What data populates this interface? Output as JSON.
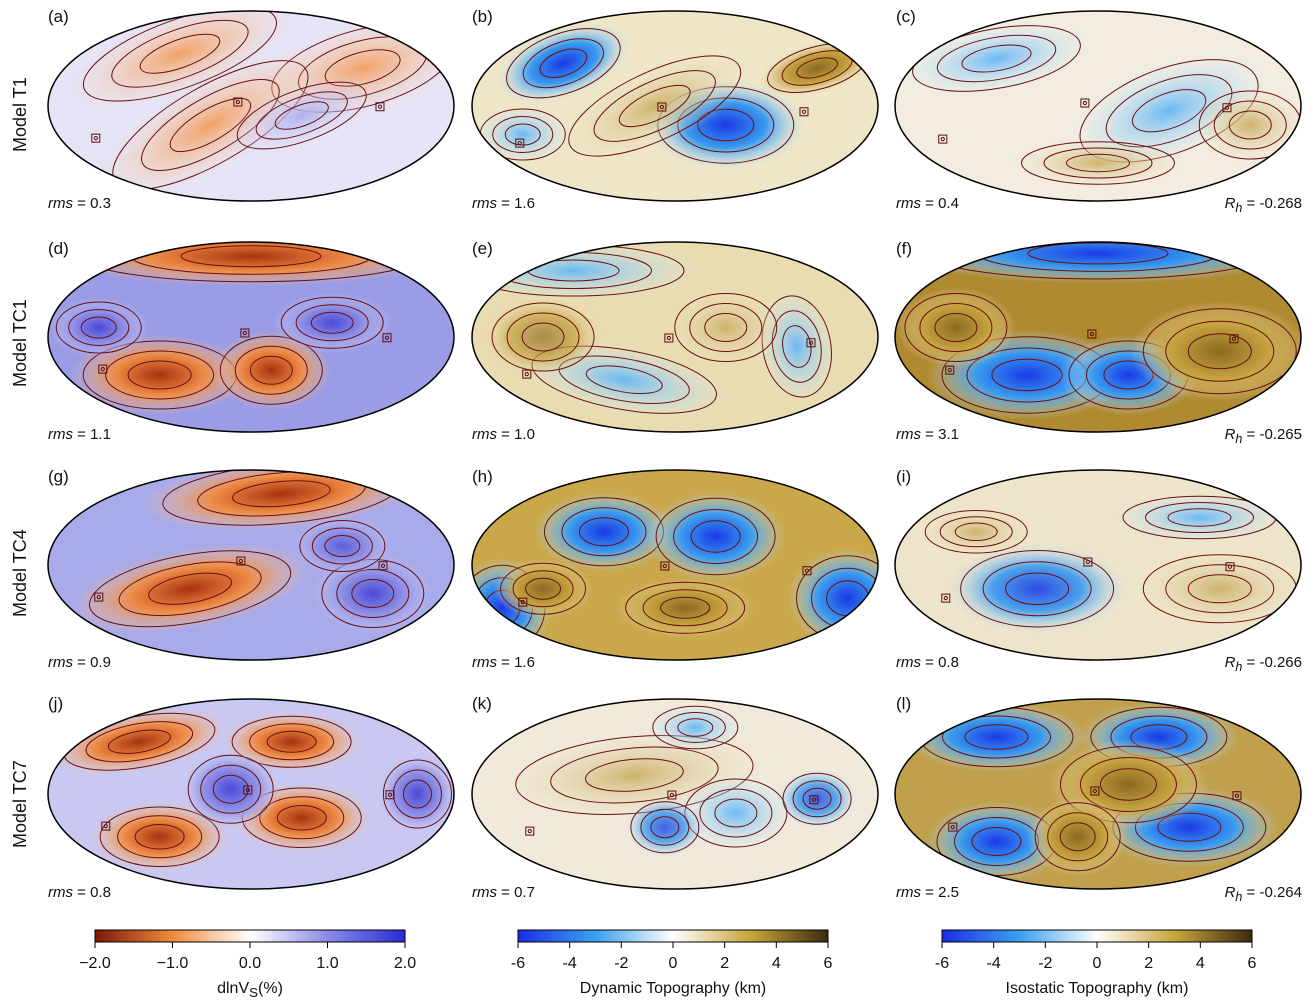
{
  "rows": [
    {
      "label": "Model T1",
      "panels": [
        {
          "id": "(a)",
          "rms_label": "rms",
          "rms_value": " = 0.3"
        },
        {
          "id": "(b)",
          "rms_label": "rms",
          "rms_value": " = 1.6"
        },
        {
          "id": "(c)",
          "rms_label": "rms",
          "rms_value": " = 0.4",
          "rh_label": "R",
          "rh_sub": "h",
          "rh_value": " = -0.268"
        }
      ]
    },
    {
      "label": "Model TC1",
      "panels": [
        {
          "id": "(d)",
          "rms_label": "rms",
          "rms_value": " = 1.1"
        },
        {
          "id": "(e)",
          "rms_label": "rms",
          "rms_value": " = 1.0"
        },
        {
          "id": "(f)",
          "rms_label": "rms",
          "rms_value": " = 3.1",
          "rh_label": "R",
          "rh_sub": "h",
          "rh_value": " = -0.265"
        }
      ]
    },
    {
      "label": "Model TC4",
      "panels": [
        {
          "id": "(g)",
          "rms_label": "rms",
          "rms_value": " = 0.9"
        },
        {
          "id": "(h)",
          "rms_label": "rms",
          "rms_value": " = 1.6"
        },
        {
          "id": "(i)",
          "rms_label": "rms",
          "rms_value": " = 0.8",
          "rh_label": "R",
          "rh_sub": "h",
          "rh_value": " = -0.266"
        }
      ]
    },
    {
      "label": "Model TC7",
      "panels": [
        {
          "id": "(j)",
          "rms_label": "rms",
          "rms_value": " = 0.8"
        },
        {
          "id": "(k)",
          "rms_label": "rms",
          "rms_value": " = 0.7"
        },
        {
          "id": "(l)",
          "rms_label": "rms",
          "rms_value": " = 2.5",
          "rh_label": "R",
          "rh_sub": "h",
          "rh_value": " = -0.264"
        }
      ]
    }
  ],
  "colorbars": [
    {
      "title_main": "dlnV",
      "title_sub": "S",
      "title_tail": "(%)",
      "ticks": [
        "−2.0",
        "−1.0",
        "0.0",
        "1.0",
        "2.0"
      ],
      "colors": [
        "#7a1a05",
        "#f08a3c",
        "#ffffff",
        "#8a8ae6",
        "#2a2ad6"
      ]
    },
    {
      "title": "Dynamic Topography (km)",
      "ticks": [
        "-6",
        "-4",
        "-2",
        "0",
        "2",
        "4",
        "6"
      ],
      "colors": [
        "#1a2ee6",
        "#3aa0f0",
        "#ffffff",
        "#c9a53a",
        "#3a2a10"
      ]
    },
    {
      "title": "Isostatic Topography (km)",
      "ticks": [
        "-6",
        "-4",
        "-2",
        "0",
        "2",
        "4",
        "6"
      ],
      "colors": [
        "#1a2ee6",
        "#3aa0f0",
        "#ffffff",
        "#c9a53a",
        "#3a2a10"
      ]
    }
  ]
}
